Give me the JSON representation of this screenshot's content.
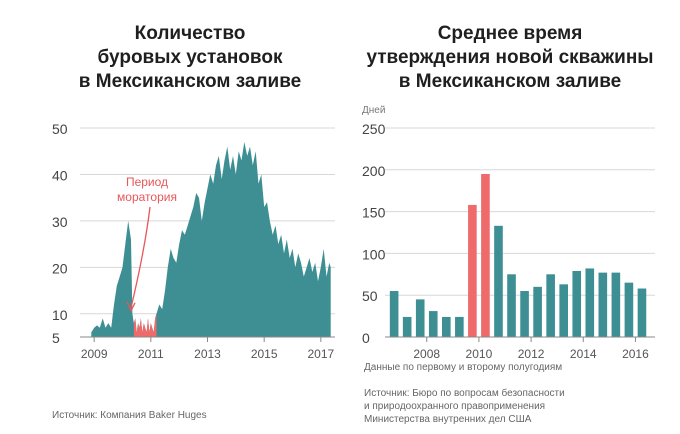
{
  "colors": {
    "teal": "#3d8f94",
    "moratorium": "#ee6a6b",
    "grid": "#d8d8d8",
    "axis_text": "#555555",
    "annotation": "#e8575a"
  },
  "chart_data": [
    {
      "type": "area",
      "title_lines": [
        "Количество",
        "буровых установок",
        "в Мексиканском заливе"
      ],
      "xlabel": "",
      "ylabel": "",
      "x_ticks": [
        2009,
        2011,
        2013,
        2015,
        2017
      ],
      "y_ticks": [
        5,
        10,
        20,
        30,
        40,
        50
      ],
      "xlim": [
        2008.5,
        2017.5
      ],
      "ylim": [
        5,
        50
      ],
      "grid": true,
      "annotation": {
        "lines": [
          "Период",
          "моратория"
        ],
        "arrow_to": [
          2010.3,
          10
        ]
      },
      "moratorium_range": [
        2010.4,
        2011.2
      ],
      "series": [
        {
          "x": [
            2008.9,
            2009.0,
            2009.1,
            2009.2,
            2009.3,
            2009.4,
            2009.5,
            2009.6,
            2009.7,
            2009.8,
            2009.9,
            2010.0,
            2010.1,
            2010.2,
            2010.3,
            2010.35,
            2010.4,
            2010.45,
            2010.5,
            2010.55,
            2010.6,
            2010.65,
            2010.7,
            2010.75,
            2010.8,
            2010.85,
            2010.9,
            2010.95,
            2011.0,
            2011.05,
            2011.1,
            2011.15,
            2011.2,
            2011.3,
            2011.4,
            2011.5,
            2011.6,
            2011.7,
            2011.8,
            2011.9,
            2012.0,
            2012.1,
            2012.2,
            2012.3,
            2012.4,
            2012.5,
            2012.6,
            2012.7,
            2012.8,
            2012.9,
            2013.0,
            2013.1,
            2013.2,
            2013.3,
            2013.4,
            2013.5,
            2013.6,
            2013.7,
            2013.8,
            2013.9,
            2014.0,
            2014.1,
            2014.2,
            2014.3,
            2014.4,
            2014.5,
            2014.6,
            2014.7,
            2014.8,
            2014.9,
            2015.0,
            2015.1,
            2015.2,
            2015.3,
            2015.4,
            2015.5,
            2015.6,
            2015.7,
            2015.8,
            2015.9,
            2016.0,
            2016.1,
            2016.2,
            2016.3,
            2016.4,
            2016.5,
            2016.6,
            2016.7,
            2016.8,
            2016.9,
            2017.0,
            2017.1,
            2017.2,
            2017.3,
            2017.35
          ],
          "y": [
            6,
            7,
            7.5,
            7,
            9,
            7,
            8,
            7,
            12,
            16,
            18,
            20,
            25,
            30,
            26,
            10,
            8,
            9,
            6,
            8,
            7,
            9,
            6,
            8,
            7,
            6,
            9,
            6,
            8,
            7,
            6,
            9,
            10,
            12,
            11,
            15,
            20,
            24,
            22,
            21,
            25,
            28,
            27,
            29,
            31,
            33,
            36,
            35,
            30,
            34,
            37,
            40,
            38,
            42,
            44,
            39,
            43,
            46,
            41,
            44,
            40,
            45,
            43,
            47,
            44,
            46,
            42,
            45,
            38,
            40,
            33,
            34,
            30,
            27,
            29,
            25,
            27,
            23,
            26,
            22,
            24,
            20,
            23,
            21,
            18,
            20,
            22,
            19,
            21,
            17,
            20,
            24,
            18,
            21,
            20
          ]
        }
      ]
    },
    {
      "type": "bar",
      "title_lines": [
        "Среднее время",
        "утверждения новой скважины",
        "в Мексиканском заливе"
      ],
      "ylabel": "Дней",
      "x_ticks": [
        2008,
        2010,
        2012,
        2014,
        2016
      ],
      "y_ticks": [
        0,
        50,
        100,
        150,
        200,
        250
      ],
      "ylim": [
        0,
        250
      ],
      "grid": true,
      "bar_width_years": 0.33,
      "bars": [
        {
          "x": 2006.75,
          "value": 55,
          "highlight": false
        },
        {
          "x": 2007.25,
          "value": 24,
          "highlight": false
        },
        {
          "x": 2007.75,
          "value": 45,
          "highlight": false
        },
        {
          "x": 2008.25,
          "value": 31,
          "highlight": false
        },
        {
          "x": 2008.75,
          "value": 24,
          "highlight": false
        },
        {
          "x": 2009.25,
          "value": 24,
          "highlight": false
        },
        {
          "x": 2009.75,
          "value": 158,
          "highlight": true
        },
        {
          "x": 2010.25,
          "value": 195,
          "highlight": true
        },
        {
          "x": 2010.75,
          "value": 133,
          "highlight": false
        },
        {
          "x": 2011.25,
          "value": 75,
          "highlight": false
        },
        {
          "x": 2011.75,
          "value": 55,
          "highlight": false
        },
        {
          "x": 2012.25,
          "value": 60,
          "highlight": false
        },
        {
          "x": 2012.75,
          "value": 75,
          "highlight": false
        },
        {
          "x": 2013.25,
          "value": 63,
          "highlight": false
        },
        {
          "x": 2013.75,
          "value": 79,
          "highlight": false
        },
        {
          "x": 2014.25,
          "value": 82,
          "highlight": false
        },
        {
          "x": 2014.75,
          "value": 77,
          "highlight": false
        },
        {
          "x": 2015.25,
          "value": 77,
          "highlight": false
        },
        {
          "x": 2015.75,
          "value": 65,
          "highlight": false
        },
        {
          "x": 2016.25,
          "value": 58,
          "highlight": false
        }
      ]
    }
  ],
  "notes": {
    "left_source": "Источник: Компания Baker Huges",
    "right_note": "Данные по первому и второму полугодиям",
    "right_source_lines": [
      "Источник: Бюро по вопросам безопасности",
      "и природоохранного правоприменения",
      "Министерства внутренних дел США"
    ]
  }
}
